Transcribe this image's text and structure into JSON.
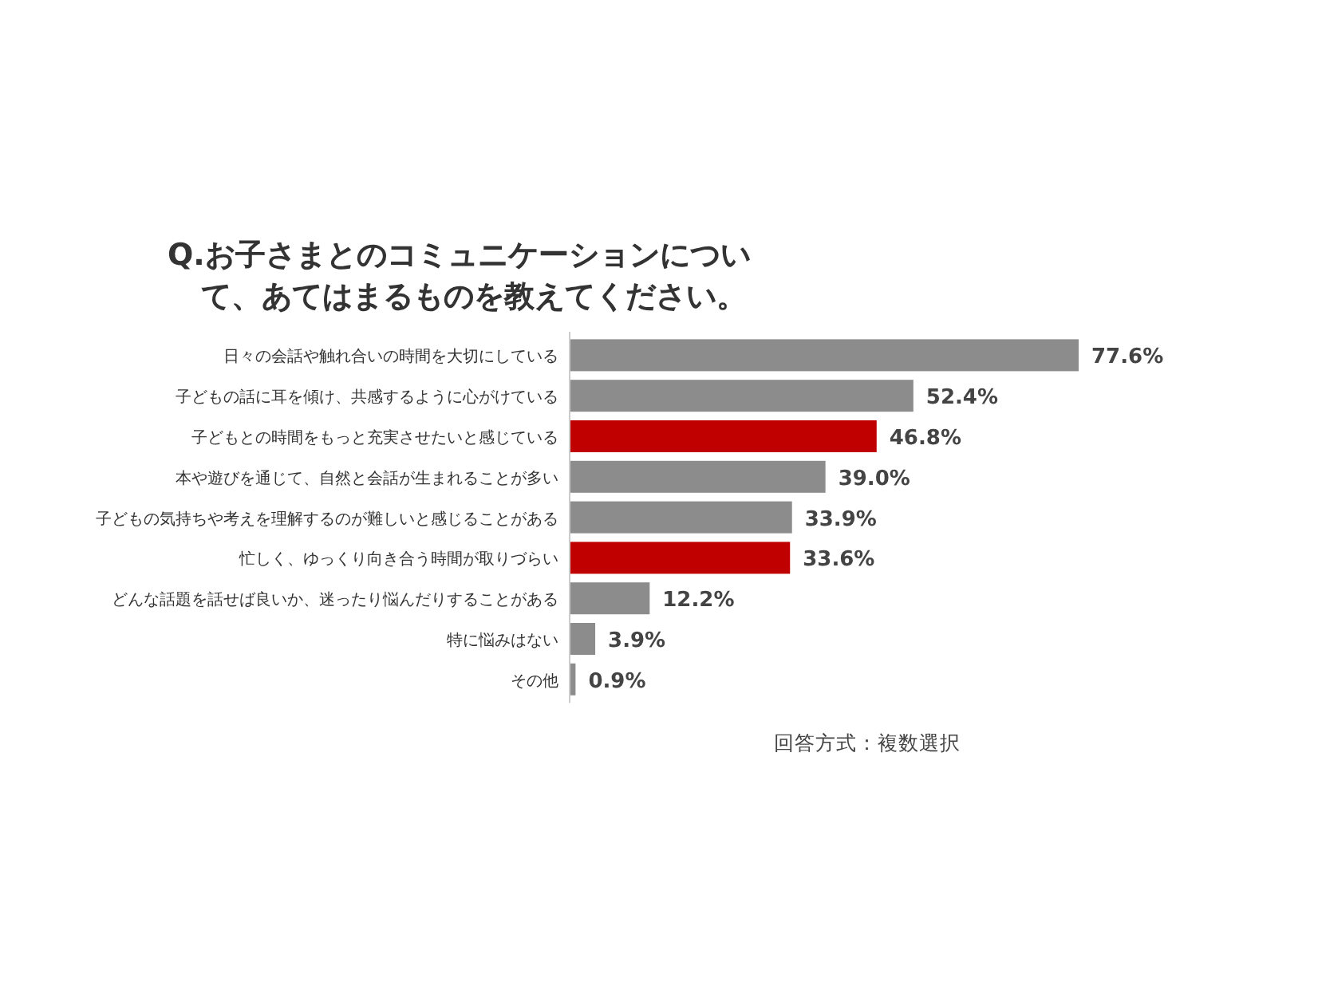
{
  "chart_data": {
    "type": "bar",
    "orientation": "horizontal",
    "title": "Q.お子さまとのコミュニケーションについて、あてはまるものを教えてください。",
    "categories": [
      "日々の会話や触れ合いの時間を大切にしている",
      "子どもの話に耳を傾け、共感するように心がけている",
      "子どもとの時間をもっと充実させたいと感じている",
      "本や遊びを通じて、自然と会話が生まれることが多い",
      "子どもの気持ちや考えを理解するのが難しいと感じることがある",
      "忙しく、ゆっくり向き合う時間が取りづらい",
      "どんな話題を話せば良いか、迷ったり悩んだりすることがある",
      "特に悩みはない",
      "その他"
    ],
    "values": [
      77.6,
      52.4,
      46.8,
      39.0,
      33.9,
      33.6,
      12.2,
      3.9,
      0.9
    ],
    "value_labels": [
      "77.6%",
      "52.4%",
      "46.8%",
      "39.0%",
      "33.9%",
      "33.6%",
      "12.2%",
      "3.9%",
      "0.9%"
    ],
    "colors": [
      "#8c8c8c",
      "#8c8c8c",
      "#c00000",
      "#8c8c8c",
      "#8c8c8c",
      "#c00000",
      "#8c8c8c",
      "#8c8c8c",
      "#8c8c8c"
    ],
    "annotations": [
      "回答方式：複数選択"
    ]
  }
}
